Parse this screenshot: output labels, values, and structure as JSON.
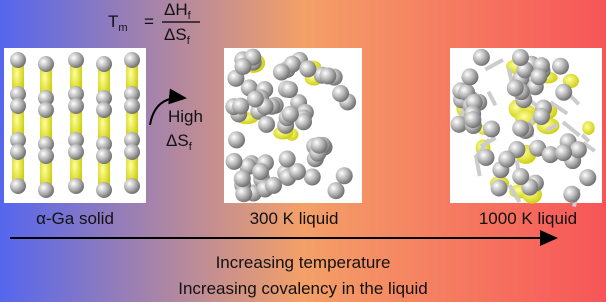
{
  "formula": {
    "lhs": "T",
    "lhs_sub": "m",
    "equals": "=",
    "num": "ΔH",
    "num_sub": "f",
    "den": "ΔS",
    "den_sub": "f"
  },
  "arrow_note": {
    "line1": "High",
    "line2": "ΔS",
    "line2_sub": "f"
  },
  "panels": [
    {
      "label": "α-Ga solid"
    },
    {
      "label": "300 K liquid"
    },
    {
      "label": "1000 K liquid"
    }
  ],
  "axis": {
    "line1": "Increasing temperature",
    "line2": "Increasing covalency in the liquid"
  }
}
